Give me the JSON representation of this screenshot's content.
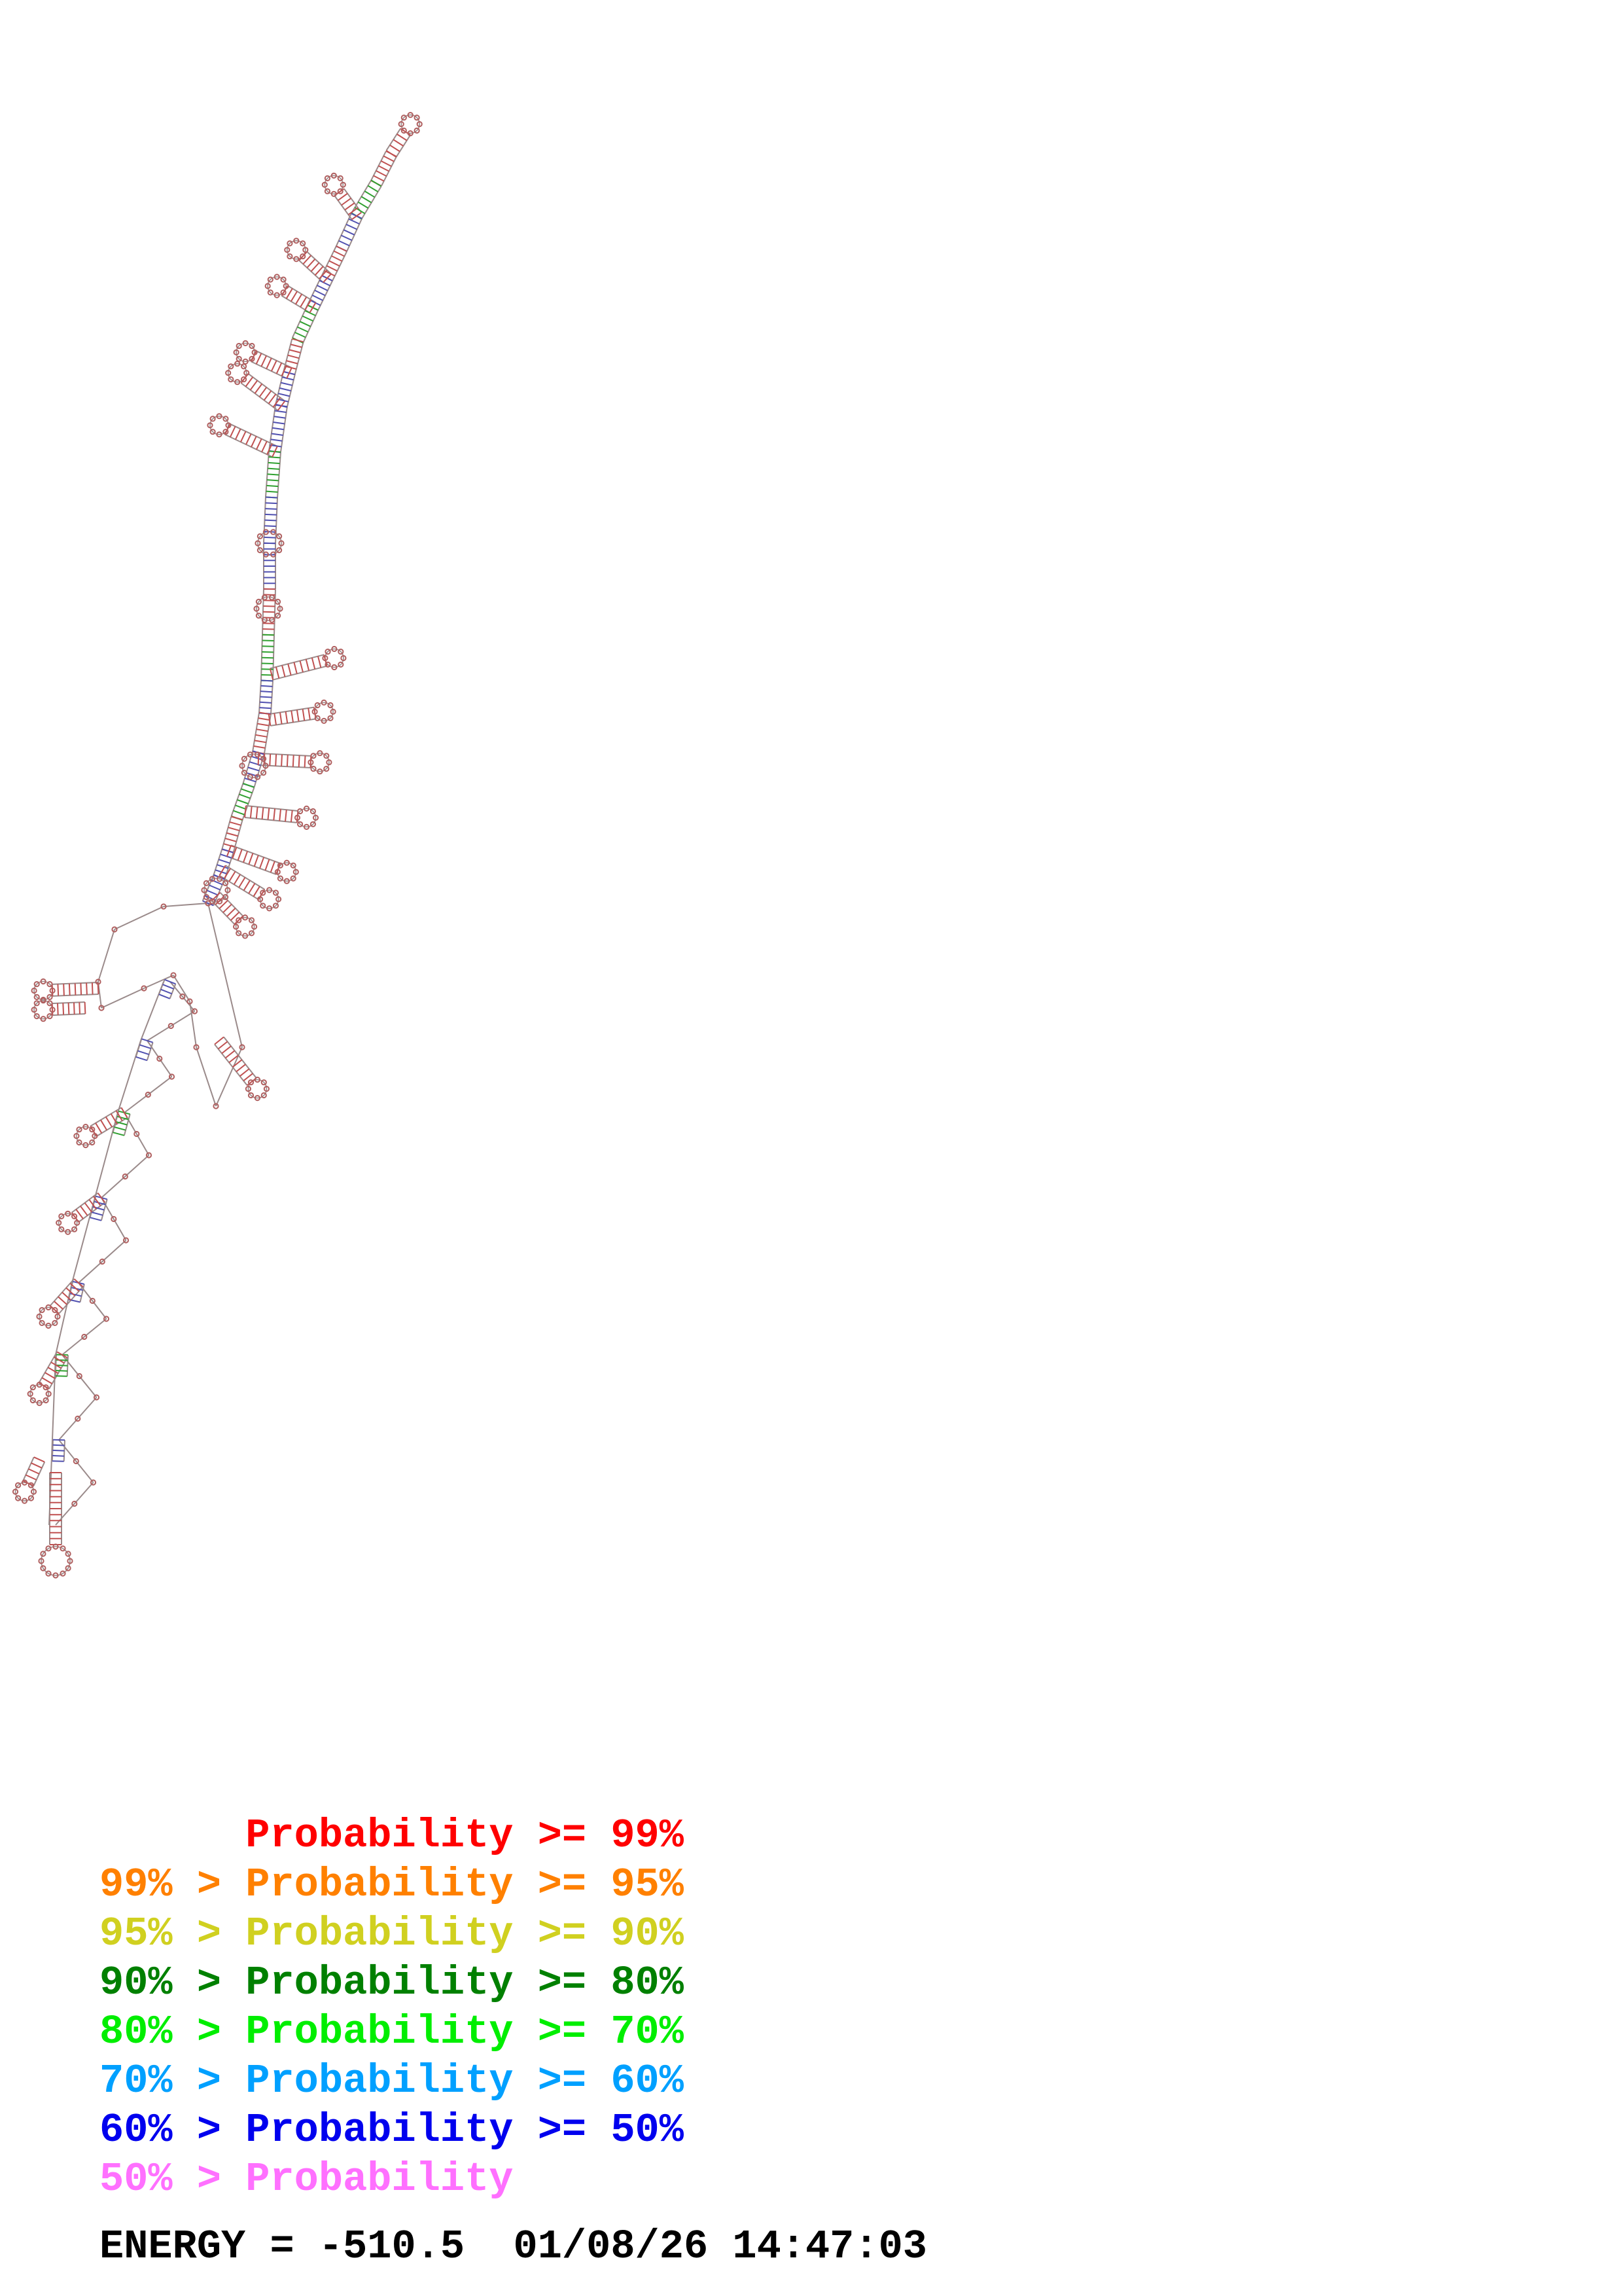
{
  "legend": [
    {
      "text": "      Probability >= 99%",
      "color": "#ff0000"
    },
    {
      "text": "99% > Probability >= 95%",
      "color": "#ff8000"
    },
    {
      "text": "95% > Probability >= 90%",
      "color": "#d0d020"
    },
    {
      "text": "90% > Probability >= 80%",
      "color": "#008000"
    },
    {
      "text": "80% > Probability >= 70%",
      "color": "#00ee00"
    },
    {
      "text": "70% > Probability >= 60%",
      "color": "#00a0ff"
    },
    {
      "text": "60% > Probability >= 50%",
      "color": "#0000ee"
    },
    {
      "text": "50% > Probability",
      "color": "#ff70ff"
    }
  ],
  "energy_line": "ENERGY = -510.5  01/08/26 14:47:03",
  "colors": {
    "backbone": "#9a8a8a",
    "base": "#b06060",
    "pair_high": "#c05050",
    "pair_mid": "#5050b0",
    "pair_low": "#30a030"
  }
}
